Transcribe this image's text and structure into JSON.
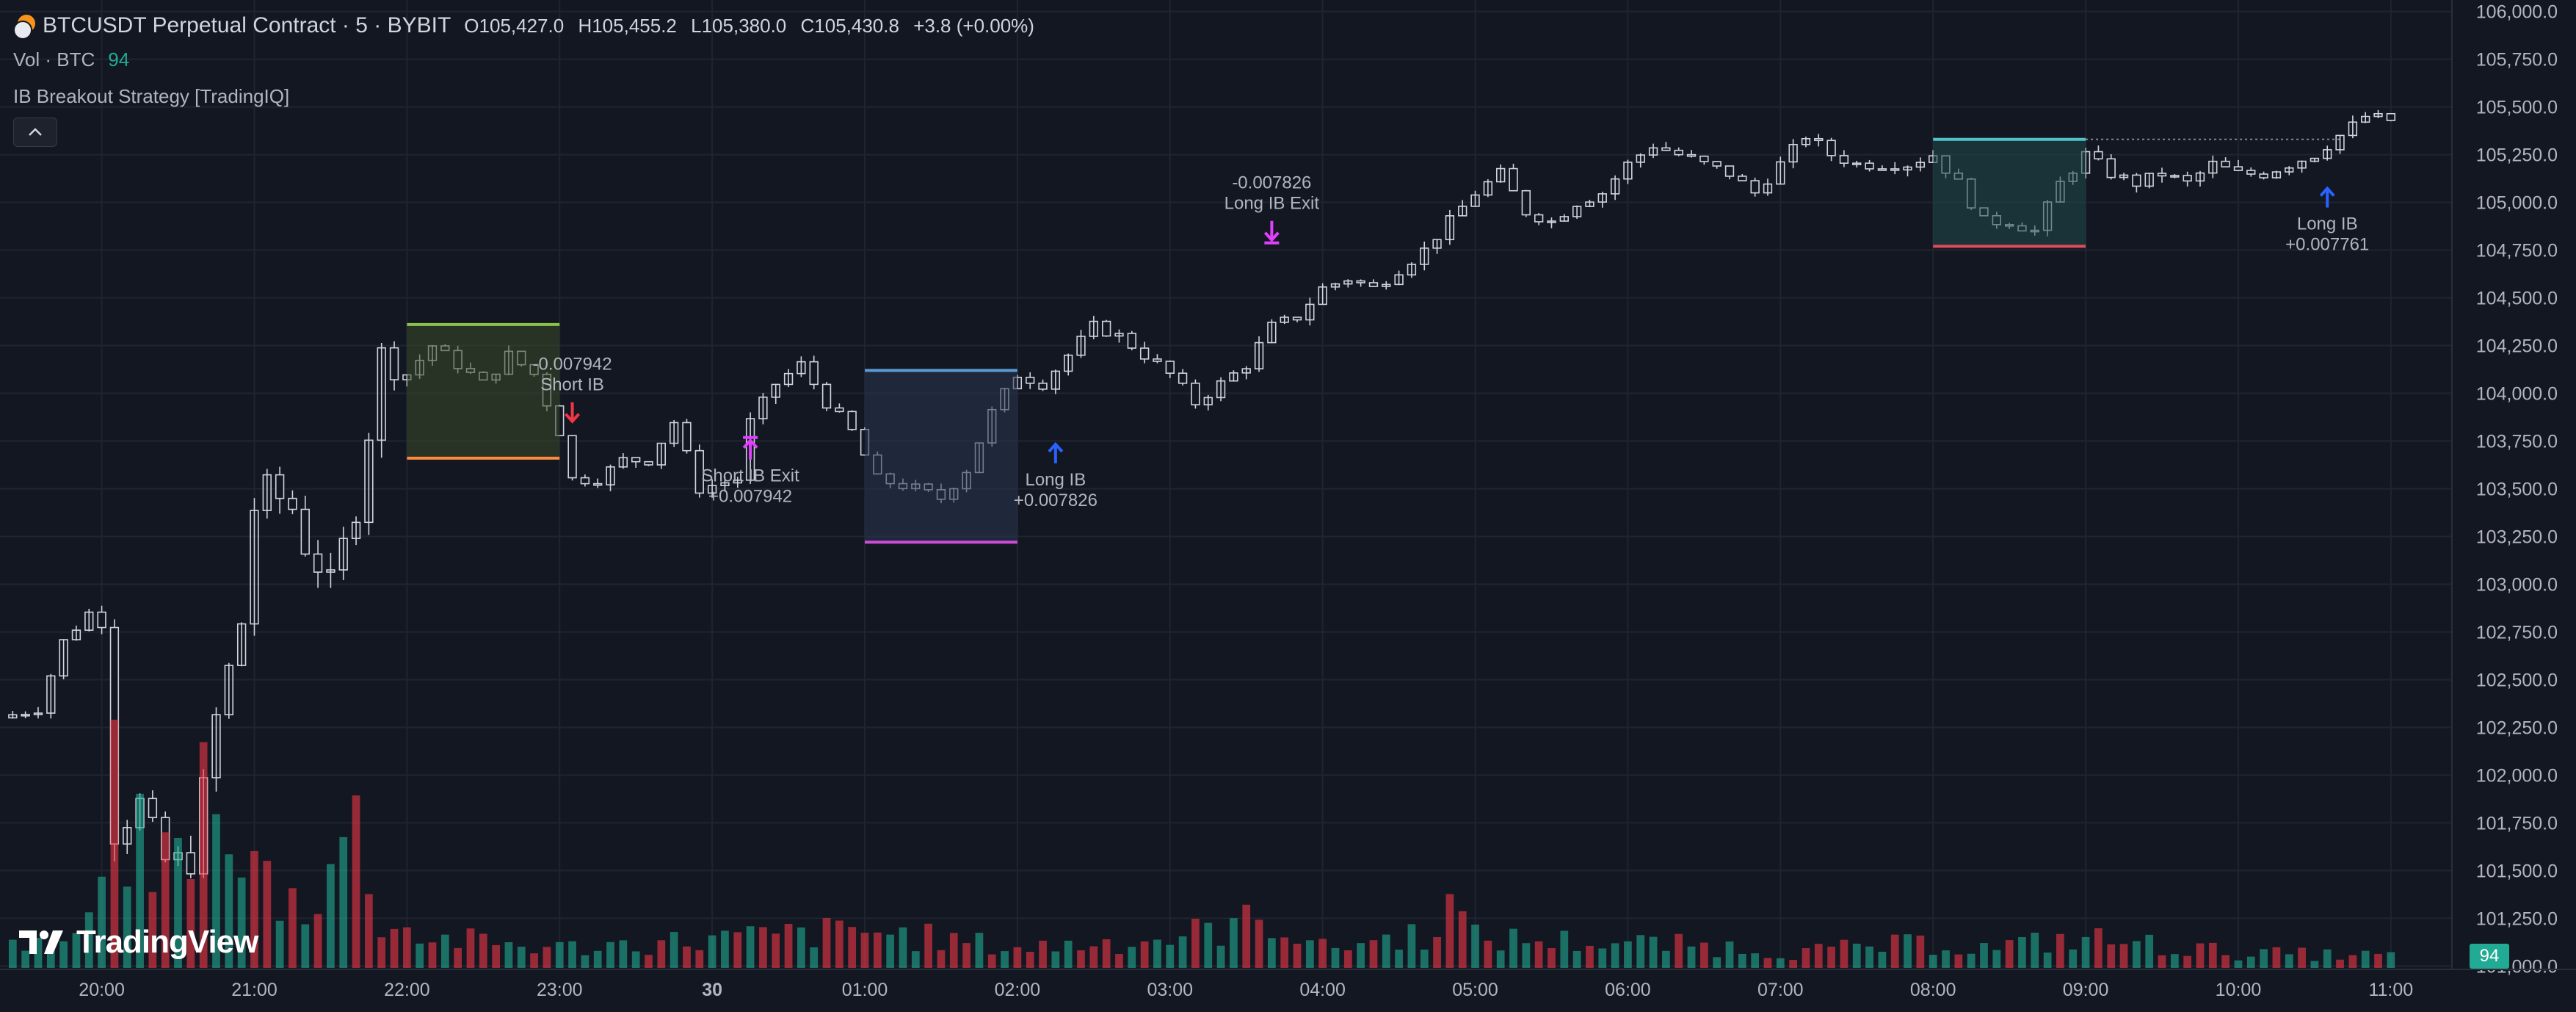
{
  "header": {
    "title": "BTCUSDT Perpetual Contract · 5 · BYBIT",
    "ohlc": {
      "o_label": "O",
      "o": "105,427.0",
      "h_label": "H",
      "h": "105,455.2",
      "l_label": "L",
      "l": "105,380.0",
      "c_label": "C",
      "c": "105,430.8",
      "change": "+3.8 (+0.00%)"
    },
    "vol_label": "Vol · BTC",
    "vol_value": "94",
    "indicator": "IB Breakout Strategy [TradingIQ]"
  },
  "logo_text": "TradingView",
  "colors": {
    "bg": "#131722",
    "grid": "#1f2430",
    "candle": "#d1d4dc",
    "vol_up": "#22ab94",
    "vol_down": "#f23645",
    "long": "#2962ff",
    "short": "#f23645",
    "exit": "#e040fb"
  },
  "chart_data": {
    "type": "candlestick",
    "symbol": "BTCUSDT",
    "interval_minutes": 5,
    "y_ticks": [
      "106,000.0",
      "105,750.0",
      "105,500.0",
      "105,250.0",
      "105,000.0",
      "104,750.0",
      "104,500.0",
      "104,250.0",
      "104,000.0",
      "103,750.0",
      "103,500.0",
      "103,250.0",
      "103,000.0",
      "102,750.0",
      "102,500.0",
      "102,250.0",
      "102,000.0",
      "101,750.0",
      "101,500.0",
      "101,250.0",
      "101,000.0"
    ],
    "ylim": [
      100990,
      106060
    ],
    "x_ticks": [
      "20:00",
      "21:00",
      "22:00",
      "23:00",
      "30",
      "01:00",
      "02:00",
      "03:00",
      "04:00",
      "05:00",
      "06:00",
      "07:00",
      "08:00",
      "09:00",
      "10:00",
      "11:00"
    ],
    "xlim": [
      "19:20",
      "11:24"
    ],
    "price_path": [
      [
        "19:20",
        102300
      ],
      [
        "19:35",
        102350
      ],
      [
        "19:45",
        102700
      ],
      [
        "19:55",
        102850
      ],
      [
        "20:00",
        102800
      ],
      [
        "20:05",
        101700
      ],
      [
        "20:15",
        101850
      ],
      [
        "20:25",
        101550
      ],
      [
        "20:35",
        101550
      ],
      [
        "20:45",
        102300
      ],
      [
        "20:55",
        102800
      ],
      [
        "21:00",
        103400
      ],
      [
        "21:05",
        103500
      ],
      [
        "21:15",
        103400
      ],
      [
        "21:20",
        103200
      ],
      [
        "21:30",
        103000
      ],
      [
        "21:40",
        103400
      ],
      [
        "21:50",
        104200
      ],
      [
        "22:00",
        104100
      ],
      [
        "22:10",
        104250
      ],
      [
        "22:30",
        104050
      ],
      [
        "22:40",
        104200
      ],
      [
        "22:50",
        104100
      ],
      [
        "23:00",
        103800
      ],
      [
        "23:05",
        103550
      ],
      [
        "23:15",
        103550
      ],
      [
        "23:25",
        103650
      ],
      [
        "23:35",
        103650
      ],
      [
        "23:45",
        103850
      ],
      [
        "23:55",
        103500
      ],
      [
        "00:10",
        103550
      ],
      [
        "00:15",
        103850
      ],
      [
        "00:25",
        104050
      ],
      [
        "00:35",
        104150
      ],
      [
        "00:45",
        103950
      ],
      [
        "00:55",
        103800
      ],
      [
        "01:05",
        103550
      ],
      [
        "01:20",
        103500
      ],
      [
        "01:30",
        103450
      ],
      [
        "01:40",
        103600
      ],
      [
        "01:50",
        103900
      ],
      [
        "02:00",
        104100
      ],
      [
        "02:10",
        104050
      ],
      [
        "02:20",
        104200
      ],
      [
        "02:30",
        104350
      ],
      [
        "02:40",
        104300
      ],
      [
        "02:50",
        104200
      ],
      [
        "03:00",
        104100
      ],
      [
        "03:10",
        103950
      ],
      [
        "03:20",
        104050
      ],
      [
        "03:30",
        104150
      ],
      [
        "03:40",
        104350
      ],
      [
        "03:50",
        104400
      ],
      [
        "04:00",
        104550
      ],
      [
        "04:10",
        104600
      ],
      [
        "04:20",
        104550
      ],
      [
        "04:30",
        104650
      ],
      [
        "04:40",
        104750
      ],
      [
        "04:50",
        104900
      ],
      [
        "05:00",
        105050
      ],
      [
        "05:10",
        105150
      ],
      [
        "05:20",
        104950
      ],
      [
        "05:30",
        104900
      ],
      [
        "05:40",
        105000
      ],
      [
        "05:50",
        105050
      ],
      [
        "06:00",
        105200
      ],
      [
        "06:10",
        105300
      ],
      [
        "06:20",
        105250
      ],
      [
        "06:30",
        105200
      ],
      [
        "06:40",
        105150
      ],
      [
        "06:50",
        105050
      ],
      [
        "07:00",
        105200
      ],
      [
        "07:10",
        105350
      ],
      [
        "07:20",
        105250
      ],
      [
        "07:30",
        105200
      ],
      [
        "07:40",
        105200
      ],
      [
        "07:50",
        105200
      ],
      [
        "08:00",
        105250
      ],
      [
        "08:10",
        105100
      ],
      [
        "08:20",
        104900
      ],
      [
        "08:30",
        104900
      ],
      [
        "08:40",
        104850
      ],
      [
        "08:50",
        105100
      ],
      [
        "09:00",
        105250
      ],
      [
        "09:10",
        105150
      ],
      [
        "09:20",
        105100
      ],
      [
        "09:30",
        105150
      ],
      [
        "09:40",
        105100
      ],
      [
        "09:50",
        105200
      ],
      [
        "10:00",
        105150
      ],
      [
        "10:10",
        105150
      ],
      [
        "10:20",
        105200
      ],
      [
        "10:30",
        105250
      ],
      [
        "10:40",
        105350
      ],
      [
        "10:50",
        105450
      ],
      [
        "11:00",
        105430
      ]
    ],
    "volume_series": {
      "name": "Vol · BTC",
      "points": [
        [
          "19:50",
          0.2
        ],
        [
          "20:00",
          0.3
        ],
        [
          "20:05",
          0.78
        ],
        [
          "20:10",
          0.55
        ],
        [
          "20:20",
          0.4
        ],
        [
          "20:30",
          0.45
        ],
        [
          "20:35",
          0.6
        ],
        [
          "20:40",
          0.7
        ],
        [
          "20:45",
          1.0
        ],
        [
          "20:50",
          0.35
        ],
        [
          "21:00",
          0.4
        ],
        [
          "21:10",
          0.3
        ],
        [
          "21:20",
          0.25
        ],
        [
          "21:30",
          0.45
        ],
        [
          "21:40",
          0.55
        ],
        [
          "21:50",
          0.2
        ],
        [
          "22:00",
          0.15
        ],
        [
          "22:10",
          0.12
        ],
        [
          "23:00",
          0.08
        ],
        [
          "01:00",
          0.15
        ],
        [
          "02:00",
          0.08
        ],
        [
          "03:00",
          0.12
        ],
        [
          "03:40",
          0.2
        ],
        [
          "04:00",
          0.08
        ],
        [
          "04:40",
          0.14
        ],
        [
          "04:50",
          0.25
        ],
        [
          "05:00",
          0.12
        ],
        [
          "06:00",
          0.1
        ],
        [
          "06:50",
          0.08
        ],
        [
          "07:00",
          0.06
        ],
        [
          "08:00",
          0.1
        ],
        [
          "08:20",
          0.08
        ],
        [
          "09:00",
          0.12
        ],
        [
          "10:00",
          0.06
        ],
        [
          "10:50",
          0.05
        ]
      ]
    },
    "ib_boxes": [
      {
        "start": "22:00",
        "end": "23:00",
        "high": 104360,
        "low": 103660,
        "top_color": "#8bc34a",
        "bottom_color": "#ff8a3d",
        "fill": "#3a4a2a"
      },
      {
        "start": "01:00",
        "end": "02:00",
        "high": 104120,
        "low": 103220,
        "top_color": "#5b9bd5",
        "bottom_color": "#d04cd8",
        "fill": "#2a3550"
      },
      {
        "start": "08:00",
        "end": "09:00",
        "high": 105330,
        "low": 104770,
        "top_color": "#4fc3c7",
        "bottom_color": "#e04b5c",
        "fill": "#1f4a4c"
      }
    ],
    "signals": [
      {
        "time": "23:05",
        "price": 103780,
        "kind": "short",
        "label": "Short IB",
        "value": "-0.007942"
      },
      {
        "time": "00:15",
        "price": 103830,
        "kind": "exit_short",
        "label": "Short IB Exit",
        "value": "+0.007942"
      },
      {
        "time": "02:15",
        "price": 103810,
        "kind": "long",
        "label": "Long IB",
        "value": "+0.007826"
      },
      {
        "time": "03:40",
        "price": 104730,
        "kind": "exit_long",
        "label": "Long IB Exit",
        "value": "-0.007826"
      },
      {
        "time": "10:35",
        "price": 105150,
        "kind": "long",
        "label": "Long IB",
        "value": "+0.007761"
      }
    ],
    "grid": true,
    "legend_position": "top-left"
  }
}
